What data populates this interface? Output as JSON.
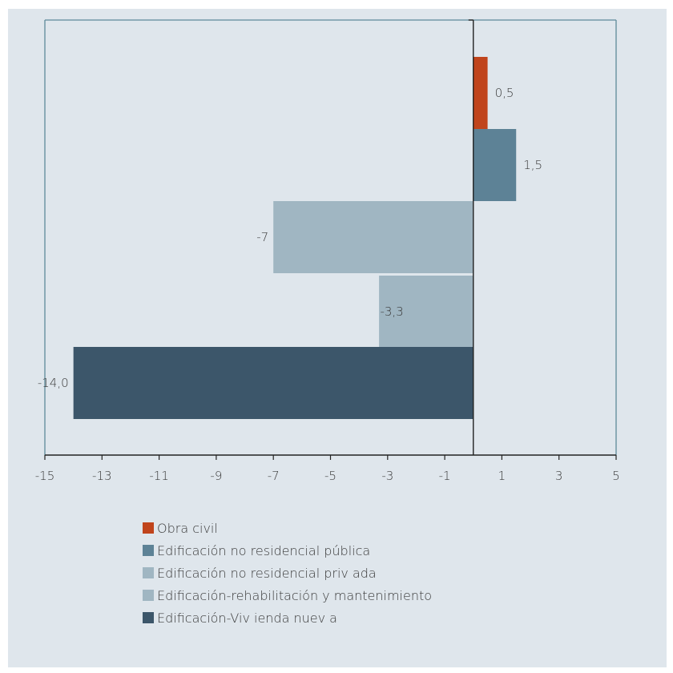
{
  "chart_data": {
    "type": "bar",
    "orientation": "horizontal",
    "xlim": [
      -15,
      5
    ],
    "x_ticks": [
      "-15",
      "-13",
      "-11",
      "-9",
      "-7",
      "-5",
      "-3",
      "-1",
      "1",
      "3",
      "5"
    ],
    "series": [
      {
        "name": "Obra civil",
        "value": 0.5,
        "label": "0,5",
        "color": "#c0441c"
      },
      {
        "name": "Edificación no residencial pública",
        "value": 1.5,
        "label": "1,5",
        "color": "#5d8296"
      },
      {
        "name": "Edificación no residencial priv ada",
        "value": -7,
        "label": "-7",
        "color": "#a0b6c2"
      },
      {
        "name": "Edificación-rehabilitación y mantenimiento",
        "value": -3.3,
        "label": "-3,3",
        "color": "#a0b6c2"
      },
      {
        "name": "Edificación-Viv ienda nuev a",
        "value": -14.0,
        "label": "-14,0",
        "color": "#3c566a"
      }
    ],
    "grid": false,
    "legend_position": "bottom"
  },
  "colors": {
    "background": "#dfe6ec",
    "axis": "#222222",
    "frame": "#5e8a9a"
  }
}
